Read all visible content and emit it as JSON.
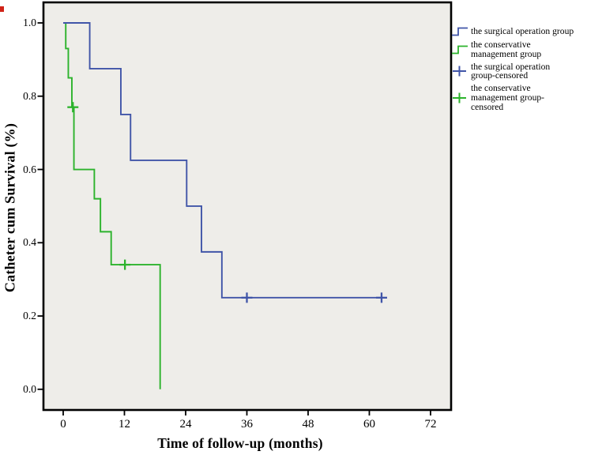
{
  "chart_data": {
    "type": "line",
    "chart_style": "kaplan-meier-step",
    "title": "",
    "xlabel": "Time of follow-up (months)",
    "ylabel": "Catheter cum Survival (%)",
    "x_ticks": [
      0,
      12,
      24,
      36,
      48,
      60,
      72
    ],
    "y_ticks": [
      1.0,
      0.8,
      0.6,
      0.4,
      0.2,
      0.0
    ],
    "xlim": [
      -4,
      76
    ],
    "ylim": [
      -0.06,
      1.06
    ],
    "grid": false,
    "legend_position": "right-top",
    "plot_background": "#eeede9",
    "frame_color": "#000000",
    "series": [
      {
        "name": "the surgical operation group",
        "color": "#4055a8",
        "step_points": [
          [
            0,
            1.0
          ],
          [
            5.2,
            1.0
          ],
          [
            5.2,
            0.875
          ],
          [
            11.3,
            0.875
          ],
          [
            11.3,
            0.75
          ],
          [
            13.2,
            0.75
          ],
          [
            13.2,
            0.625
          ],
          [
            24.2,
            0.625
          ],
          [
            24.2,
            0.5
          ],
          [
            27.1,
            0.5
          ],
          [
            27.1,
            0.375
          ],
          [
            31.1,
            0.375
          ],
          [
            31.1,
            0.25
          ],
          [
            62.4,
            0.25
          ]
        ],
        "censored_points": [
          [
            36,
            0.25
          ],
          [
            62.4,
            0.25
          ]
        ]
      },
      {
        "name": "the conservative management group",
        "color": "#2cb32c",
        "step_points": [
          [
            0,
            1.0
          ],
          [
            0.5,
            1.0
          ],
          [
            0.5,
            0.93
          ],
          [
            1.0,
            0.93
          ],
          [
            1.0,
            0.85
          ],
          [
            1.7,
            0.85
          ],
          [
            1.7,
            0.77
          ],
          [
            2.1,
            0.77
          ],
          [
            2.1,
            0.6
          ],
          [
            6.1,
            0.6
          ],
          [
            6.1,
            0.52
          ],
          [
            7.3,
            0.52
          ],
          [
            7.3,
            0.43
          ],
          [
            9.4,
            0.43
          ],
          [
            9.4,
            0.34
          ],
          [
            19.0,
            0.34
          ],
          [
            19.0,
            0.0
          ]
        ],
        "censored_points": [
          [
            1.9,
            0.77
          ],
          [
            12.1,
            0.34
          ]
        ]
      }
    ],
    "legend": {
      "items": [
        {
          "label": "the surgical operation group",
          "lines": [
            "the surgical operation group"
          ],
          "symbol": "step-line",
          "color": "#4055a8"
        },
        {
          "label": "the conservative management group",
          "lines": [
            "the conservative",
            "management group"
          ],
          "symbol": "step-line",
          "color": "#2cb32c"
        },
        {
          "label": "the surgical operation group-censored",
          "lines": [
            "the surgical operation",
            "group-censored"
          ],
          "symbol": "plus",
          "color": "#4055a8"
        },
        {
          "label": "the conservative management group-censored",
          "lines": [
            "the conservative",
            "management group-",
            "censored"
          ],
          "symbol": "plus",
          "color": "#2cb32c"
        }
      ]
    }
  },
  "artifact": {
    "color": "#d02318"
  }
}
